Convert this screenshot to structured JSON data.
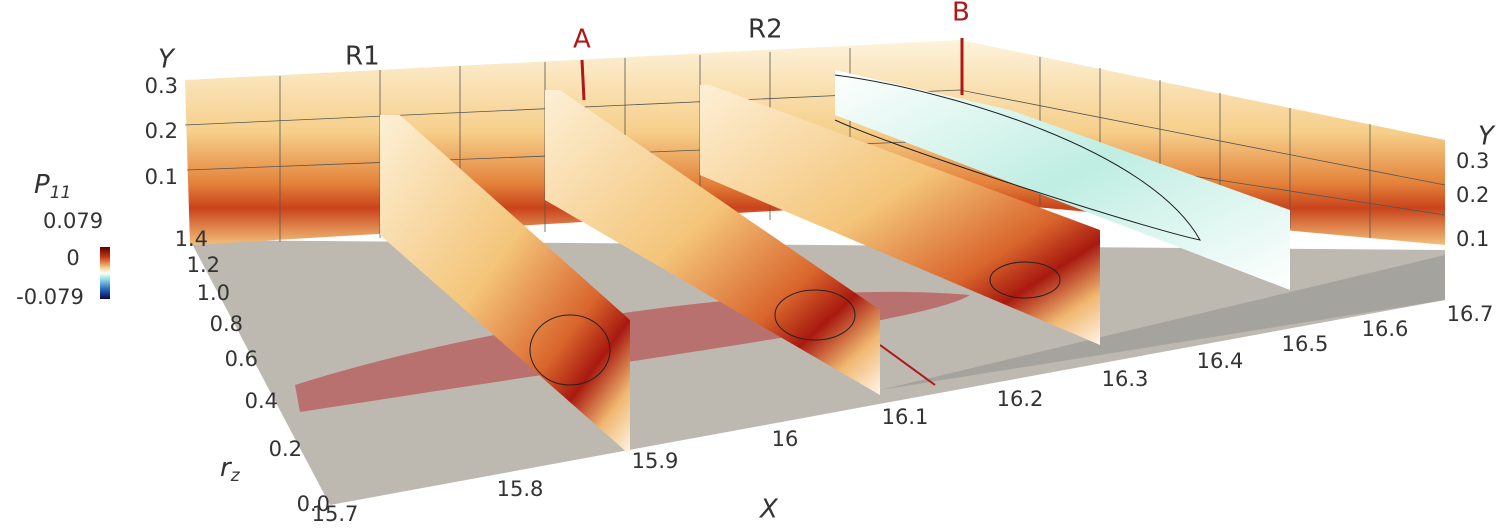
{
  "colorbar": {
    "symbol": "P",
    "subscript": "11",
    "ticks": [
      "0.079",
      "0",
      "-0.079"
    ]
  },
  "x_axis": {
    "label": "X",
    "ticks": [
      "15.7",
      "15.8",
      "15.9",
      "16",
      "16.1",
      "16.2",
      "16.3",
      "16.4",
      "16.5",
      "16.6",
      "16.7"
    ]
  },
  "rz_axis": {
    "symbol": "r",
    "subscript": "z",
    "ticks": [
      "0.0",
      "0.2",
      "0.4",
      "0.6",
      "0.8",
      "1.0",
      "1.2",
      "1.4"
    ]
  },
  "y_axis_left": {
    "label": "Y",
    "ticks": [
      "0.3",
      "0.2",
      "0.1"
    ]
  },
  "y_axis_right": {
    "label": "Y",
    "ticks": [
      "0.3",
      "0.2",
      "0.1"
    ]
  },
  "sections": {
    "r1": "R1",
    "a": "A",
    "r2": "R2",
    "b": "B"
  }
}
